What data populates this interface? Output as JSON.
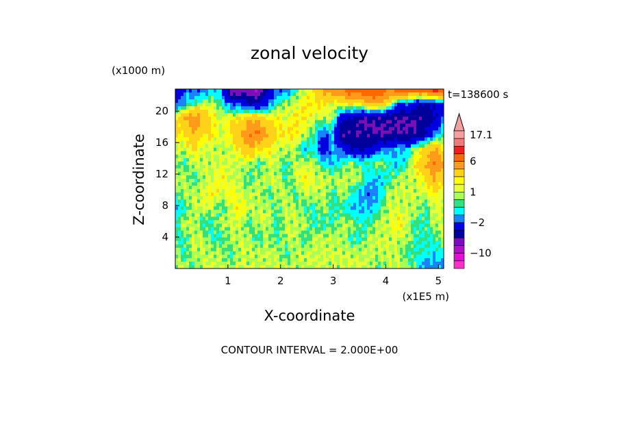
{
  "chart_data": {
    "type": "heatmap",
    "title": "zonal velocity",
    "xlabel": "X-coordinate",
    "ylabel": "Z-coordinate",
    "x_unit": "(x1E5 m)",
    "y_unit": "(x1000 m)",
    "time_label": "t=138600 s",
    "footer": "CONTOUR INTERVAL = 2.000E+00",
    "x_ticks": [
      "1",
      "2",
      "3",
      "4",
      "5"
    ],
    "y_ticks": [
      "4",
      "8",
      "12",
      "16",
      "20"
    ],
    "xlim": [
      0,
      5.1
    ],
    "ylim": [
      0,
      22.8
    ],
    "colorbar": {
      "labels": [
        "17.1",
        "6",
        "1",
        "-2",
        "-10"
      ],
      "levels": [
        17.1,
        14,
        12,
        8,
        6,
        4,
        2,
        1.5,
        1,
        0.5,
        0,
        -1,
        -2,
        -4,
        -6,
        -8,
        -10,
        -14,
        -18
      ],
      "colors": [
        "#f4a0a0",
        "#f27a7a",
        "#ee1f1f",
        "#ff6a00",
        "#ff9a1a",
        "#ffd21a",
        "#ffff00",
        "#e8ff38",
        "#a8ff55",
        "#32e07c",
        "#00ffff",
        "#1a82ff",
        "#0000e0",
        "#00009a",
        "#7a10b4",
        "#b010c8",
        "#e010d0",
        "#ff30c8"
      ]
    },
    "data": {
      "rows_top_to_bottom": [
        [
          -4,
          -2,
          -2,
          -2,
          -1,
          -1,
          -8,
          -8,
          -8,
          -8,
          -4,
          -2,
          -2,
          0,
          1,
          2,
          4,
          6,
          6,
          8,
          8,
          8,
          8,
          6,
          8,
          8,
          8,
          8,
          10,
          8
        ],
        [
          -2,
          -1,
          0,
          1,
          1,
          0,
          -2,
          -2,
          -4,
          -4,
          -2,
          0,
          1,
          1,
          2,
          2,
          2,
          1,
          2,
          2,
          2,
          4,
          4,
          2,
          -2,
          -2,
          -4,
          -4,
          -4,
          -2
        ],
        [
          2,
          4,
          6,
          4,
          2,
          1,
          2,
          2,
          4,
          4,
          2,
          2,
          1,
          2,
          2,
          1,
          1,
          1,
          -4,
          -4,
          -6,
          -6,
          -6,
          -6,
          -6,
          -6,
          -6,
          -6,
          -4,
          -2
        ],
        [
          2,
          2,
          4,
          2,
          2,
          1,
          2,
          4,
          6,
          6,
          4,
          2,
          2,
          2,
          1,
          0,
          -2,
          -1,
          -6,
          -6,
          -6,
          -6,
          -6,
          -6,
          -6,
          -6,
          -6,
          -4,
          -2,
          0
        ],
        [
          1,
          1,
          2,
          1,
          1,
          1,
          1,
          2,
          4,
          2,
          2,
          1,
          1,
          1,
          -1,
          0,
          -4,
          -1,
          -2,
          -4,
          -4,
          -4,
          -2,
          -2,
          -1,
          -1,
          1,
          2,
          4,
          2
        ],
        [
          1,
          0,
          1,
          1,
          1,
          1,
          1,
          1,
          1,
          0,
          1,
          1,
          0,
          1,
          1,
          1,
          0,
          -1,
          0,
          1,
          0,
          0,
          1,
          0,
          -1,
          0,
          2,
          4,
          6,
          4
        ],
        [
          1,
          1,
          0,
          1,
          1,
          2,
          1,
          1,
          0,
          1,
          1,
          1,
          0,
          1,
          2,
          1,
          1,
          1,
          1,
          1,
          1,
          -1,
          -1,
          0,
          1,
          1,
          1,
          2,
          4,
          2
        ],
        [
          0,
          1,
          1,
          1,
          2,
          1,
          2,
          1,
          1,
          1,
          0,
          1,
          1,
          0,
          1,
          1,
          1,
          0,
          1,
          0,
          -1,
          -2,
          -1,
          1,
          1,
          1,
          1,
          1,
          2,
          1
        ],
        [
          -1,
          0,
          1,
          1,
          1,
          0,
          1,
          2,
          1,
          1,
          1,
          0,
          1,
          1,
          0,
          0,
          1,
          0,
          0,
          -1,
          -1,
          -1,
          0,
          1,
          1,
          1,
          1,
          0,
          1,
          1
        ],
        [
          0,
          1,
          1,
          0,
          0,
          1,
          1,
          1,
          0,
          1,
          1,
          0,
          1,
          1,
          1,
          0,
          0,
          0,
          1,
          1,
          0,
          0,
          1,
          1,
          2,
          1,
          0,
          0,
          1,
          1
        ],
        [
          0,
          0,
          1,
          1,
          0,
          0,
          1,
          1,
          1,
          0,
          1,
          0,
          1,
          1,
          0,
          1,
          1,
          1,
          1,
          0,
          0,
          1,
          1,
          1,
          1,
          1,
          0,
          0,
          0,
          1
        ],
        [
          1,
          0,
          1,
          1,
          1,
          1,
          0,
          1,
          1,
          1,
          1,
          1,
          0,
          1,
          1,
          1,
          1,
          1,
          1,
          1,
          1,
          1,
          1,
          1,
          1,
          0,
          0,
          0,
          -1,
          0
        ],
        [
          1,
          1,
          0,
          1,
          1,
          1,
          1,
          1,
          1,
          1,
          1,
          1,
          1,
          1,
          1,
          1,
          1,
          1,
          1,
          1,
          1,
          1,
          0,
          1,
          1,
          1,
          0,
          -2,
          -1,
          -2
        ]
      ]
    }
  }
}
